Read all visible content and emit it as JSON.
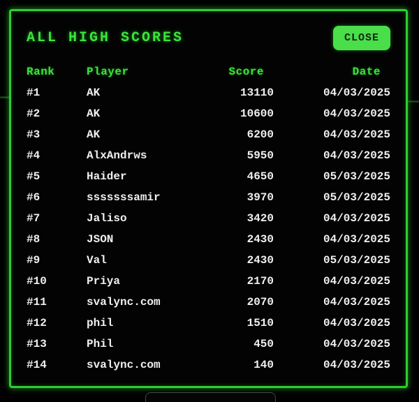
{
  "modal": {
    "title": "ALL HIGH SCORES",
    "close_button": "CLOSE"
  },
  "table": {
    "headers": {
      "rank": "Rank",
      "player": "Player",
      "score": "Score",
      "date": "Date"
    },
    "rows": [
      {
        "rank": "#1",
        "player": "AK",
        "score": "13110",
        "date": "04/03/2025"
      },
      {
        "rank": "#2",
        "player": "AK",
        "score": "10600",
        "date": "04/03/2025"
      },
      {
        "rank": "#3",
        "player": "AK",
        "score": "6200",
        "date": "04/03/2025"
      },
      {
        "rank": "#4",
        "player": "AlxAndrws",
        "score": "5950",
        "date": "04/03/2025"
      },
      {
        "rank": "#5",
        "player": "Haider",
        "score": "4650",
        "date": "05/03/2025"
      },
      {
        "rank": "#6",
        "player": "sssssssamir",
        "score": "3970",
        "date": "05/03/2025"
      },
      {
        "rank": "#7",
        "player": "Jaliso",
        "score": "3420",
        "date": "04/03/2025"
      },
      {
        "rank": "#8",
        "player": "JSON",
        "score": "2430",
        "date": "04/03/2025"
      },
      {
        "rank": "#9",
        "player": "Val",
        "score": "2430",
        "date": "05/03/2025"
      },
      {
        "rank": "#10",
        "player": "Priya",
        "score": "2170",
        "date": "04/03/2025"
      },
      {
        "rank": "#11",
        "player": "svalync.com",
        "score": "2070",
        "date": "04/03/2025"
      },
      {
        "rank": "#12",
        "player": "phil",
        "score": "1510",
        "date": "04/03/2025"
      },
      {
        "rank": "#13",
        "player": "Phil",
        "score": "450",
        "date": "04/03/2025"
      },
      {
        "rank": "#14",
        "player": "svalync.com",
        "score": "140",
        "date": "04/03/2025"
      }
    ]
  },
  "colors": {
    "accent_green": "#3ce43c",
    "border_green": "#2fce2f",
    "button_green": "#4ade4a",
    "button_text": "#102410",
    "row_text": "#f0f0f0",
    "background": "#000000"
  }
}
